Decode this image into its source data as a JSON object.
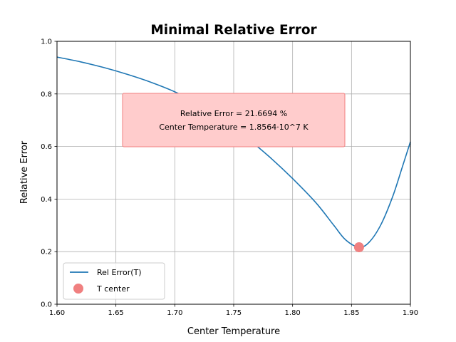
{
  "chart_data": {
    "type": "line",
    "title": "Minimal Relative Error",
    "xlabel": "Center Temperature",
    "ylabel": "Relative Error",
    "xlim": [
      1.6,
      1.9
    ],
    "ylim": [
      0.0,
      1.0
    ],
    "grid": true,
    "legend_position": "lower-left",
    "xticks": [
      "1.60",
      "1.65",
      "1.70",
      "1.75",
      "1.80",
      "1.85",
      "1.90"
    ],
    "yticks": [
      "0.0",
      "0.2",
      "0.4",
      "0.6",
      "0.8",
      "1.0"
    ],
    "series": [
      {
        "name": "Rel Error(T)",
        "color": "#1f77b4",
        "x": [
          1.6,
          1.62,
          1.64,
          1.66,
          1.68,
          1.7,
          1.72,
          1.74,
          1.76,
          1.78,
          1.8,
          1.82,
          1.835,
          1.845,
          1.8564,
          1.865,
          1.875,
          1.885,
          1.893,
          1.9
        ],
        "y": [
          0.94,
          0.922,
          0.9,
          0.874,
          0.844,
          0.808,
          0.762,
          0.705,
          0.637,
          0.562,
          0.478,
          0.385,
          0.3,
          0.245,
          0.217,
          0.236,
          0.303,
          0.41,
          0.52,
          0.618
        ]
      },
      {
        "name": "T center",
        "type": "scatter",
        "color": "#f08080",
        "x": [
          1.8564
        ],
        "y": [
          0.2167
        ]
      }
    ],
    "annotation": {
      "lines": [
        "Relative Error = 21.6694 %",
        "Center Temperature = 1.8564·10^7 K"
      ],
      "facecolor": "#ffcccc",
      "edgecolor": "#f08080"
    }
  }
}
